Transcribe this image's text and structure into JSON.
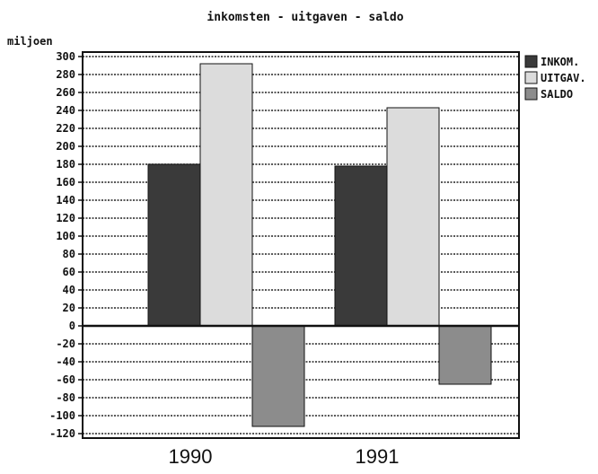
{
  "chart_data": {
    "type": "bar",
    "title": "inkomsten - uitgaven - saldo",
    "ylabel": "miljoen",
    "xlabel": "",
    "categories": [
      "1990",
      "1991"
    ],
    "series": [
      {
        "name": "INKOM.",
        "color": "#3a3a3a",
        "values": [
          180,
          178
        ]
      },
      {
        "name": "UITGAV.",
        "color": "#dcdcdc",
        "values": [
          292,
          243
        ]
      },
      {
        "name": "SALDO",
        "color": "#8c8c8c",
        "values": [
          -112,
          -65
        ]
      }
    ],
    "ylim": [
      -125,
      305
    ],
    "yticks": [
      300,
      280,
      260,
      240,
      220,
      200,
      180,
      160,
      140,
      120,
      100,
      80,
      60,
      40,
      20,
      0,
      -20,
      -40,
      -60,
      -80,
      -100,
      -120
    ],
    "grid": true,
    "legend": "top-right"
  }
}
